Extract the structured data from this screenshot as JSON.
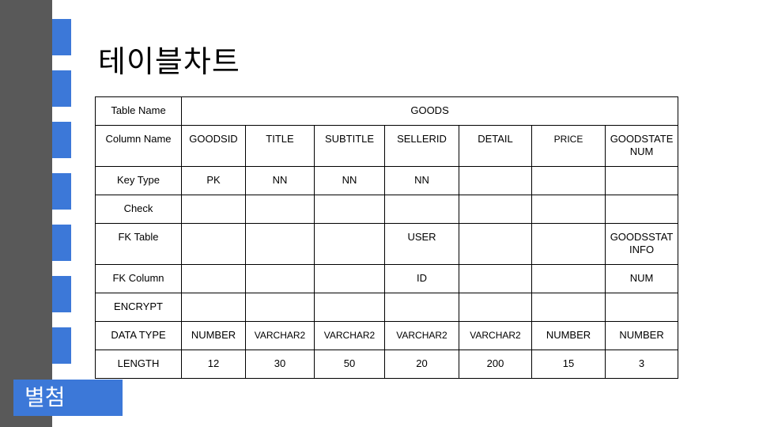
{
  "slide": {
    "title": "테이블차트",
    "badge": "별첨",
    "colors": {
      "side_bar": "#595959",
      "accent": "#3c78d8",
      "background": "#ffffff"
    }
  },
  "table": {
    "rows": [
      {
        "label": "Table Name",
        "cells": [
          "GOODS"
        ]
      },
      {
        "label": "Column Name",
        "cells": [
          "GOODSID",
          "TITLE",
          "SUBTITLE",
          "SELLERID",
          "DETAIL",
          "PRICE",
          "GOODSTATENUM"
        ]
      },
      {
        "label": "Key Type",
        "cells": [
          "PK",
          "NN",
          "NN",
          "NN",
          "",
          "",
          ""
        ]
      },
      {
        "label": "Check",
        "cells": [
          "",
          "",
          "",
          "",
          "",
          "",
          ""
        ]
      },
      {
        "label": "FK Table",
        "cells": [
          "",
          "",
          "",
          "USER",
          "",
          "",
          "GOODSSTATINFO"
        ]
      },
      {
        "label": "FK Column",
        "cells": [
          "",
          "",
          "",
          "ID",
          "",
          "",
          "NUM"
        ]
      },
      {
        "label": "ENCRYPT",
        "cells": [
          "",
          "",
          "",
          "",
          "",
          "",
          ""
        ]
      },
      {
        "label": "DATA TYPE",
        "cells": [
          "NUMBER",
          "VARCHAR2",
          "VARCHAR2",
          "VARCHAR2",
          "VARCHAR2",
          "NUMBER",
          "NUMBER"
        ]
      },
      {
        "label": "LENGTH",
        "cells": [
          "12",
          "30",
          "50",
          "20",
          "200",
          "15",
          "3"
        ]
      }
    ]
  }
}
